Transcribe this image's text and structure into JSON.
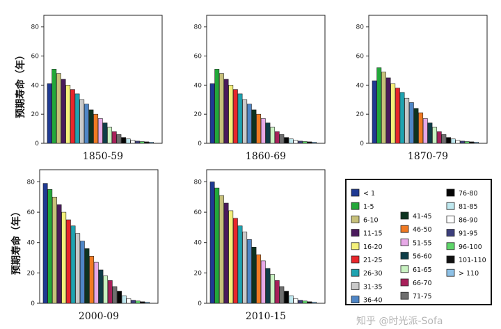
{
  "chart_data": {
    "type": "bar",
    "ylabel": "预期寿命（年）",
    "ylim": [
      0,
      88
    ],
    "yticks": [
      0,
      20,
      40,
      60,
      80
    ],
    "grid": false,
    "legend_position": "lower-right",
    "categories": [
      "< 1",
      "1-5",
      "6-10",
      "11-15",
      "16-20",
      "21-25",
      "26-30",
      "31-35",
      "36-40",
      "41-45",
      "46-50",
      "51-55",
      "56-60",
      "61-65",
      "66-70",
      "71-75",
      "76-80",
      "81-85",
      "86-90",
      "91-95",
      "96-100",
      "101-110",
      "> 110"
    ],
    "colors": [
      "#1f3a93",
      "#23a83a",
      "#c7c07a",
      "#4a1a5c",
      "#f4f07a",
      "#e8262b",
      "#1fa3b0",
      "#c9c9c9",
      "#4f86c6",
      "#0d3320",
      "#f07a23",
      "#e7a9e7",
      "#0e3d48",
      "#c9f2c2",
      "#a8205a",
      "#6e6e6e",
      "#050505",
      "#bfe8ef",
      "#ffffff",
      "#3c3f7c",
      "#5fd66a",
      "#111111",
      "#8ec1e6"
    ],
    "panels": [
      {
        "title": "1850-59",
        "values": [
          41,
          51,
          48,
          44,
          40,
          37,
          34,
          30,
          27,
          23,
          20,
          17,
          14,
          11,
          8,
          6,
          4,
          3,
          2,
          1.5,
          1.2,
          1,
          0.8
        ]
      },
      {
        "title": "1860-69",
        "values": [
          41,
          51,
          48,
          44,
          40,
          37,
          34,
          30,
          27,
          23,
          20,
          17,
          14,
          11,
          8,
          6,
          4,
          3,
          2,
          1.5,
          1.2,
          1,
          0.8
        ]
      },
      {
        "title": "1870-79",
        "values": [
          43,
          52,
          49,
          45,
          41,
          38,
          35,
          31,
          28,
          24,
          21,
          17,
          14,
          11,
          8,
          6,
          4,
          3,
          2,
          1.5,
          1.2,
          1,
          0.8
        ]
      },
      {
        "title": "2000-09",
        "values": [
          79,
          75,
          70,
          65,
          60,
          55,
          51,
          46,
          41,
          36,
          31,
          27,
          22,
          18,
          15,
          11,
          8,
          5,
          3,
          2,
          1.5,
          1,
          0.8
        ]
      },
      {
        "title": "2010-15",
        "values": [
          80,
          76,
          71,
          66,
          61,
          56,
          51,
          47,
          42,
          37,
          32,
          28,
          23,
          19,
          15,
          11,
          8,
          5,
          3,
          2,
          1.5,
          1,
          0.8
        ]
      }
    ]
  },
  "watermark": "知乎 @时光派-Sofa"
}
